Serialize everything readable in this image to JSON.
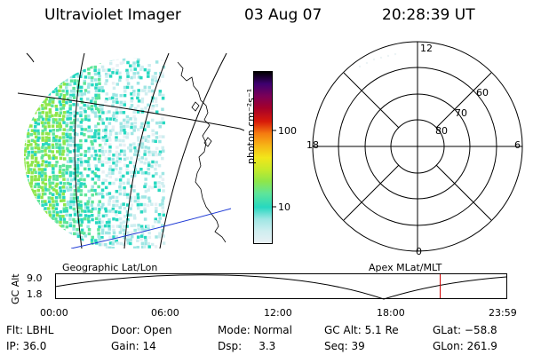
{
  "header": {
    "instrument": "Ultraviolet Imager",
    "date": "03 Aug 07",
    "time": "20:28:39 UT"
  },
  "colors": {
    "colorbar": [
      "#e8f0f4",
      "#cfeef0",
      "#9fe6e4",
      "#27d8c0",
      "#5ee59a",
      "#8ee64a",
      "#c6ea2a",
      "#f2e61a",
      "#f6b516",
      "#f57b10",
      "#d81a0a",
      "#a4002a",
      "#7a0058",
      "#3e0070",
      "#000000"
    ],
    "coast": "#000000",
    "terminator": "#1f3bd6",
    "marker": "#d10000"
  },
  "geo_panel": {
    "label": "Geographic Lat/Lon"
  },
  "colorbar": {
    "unit_label": "photon cm⁻²s⁻¹",
    "ticks": [
      "100",
      "10"
    ]
  },
  "polar_panel": {
    "label": "Apex  MLat/MLT",
    "mlt_labels": {
      "top": "12",
      "left": "18",
      "right": "6",
      "bottom": "0"
    },
    "lat_labels": [
      "60",
      "70",
      "80"
    ]
  },
  "orbit": {
    "ylabel": "GC Alt",
    "yticks": [
      "9.0",
      "1.8"
    ],
    "xticks": [
      "00:00",
      "06:00",
      "12:00",
      "18:00",
      "23:59"
    ],
    "current_hour": 20.48
  },
  "info_rows": [
    [
      "Flt: LBHL",
      "Door: Open",
      "Mode: Normal",
      "GC Alt: 5.1 Re",
      "GLat: −58.8"
    ],
    [
      "IP: 36.0",
      "Gain: 14",
      "Dsp:     3.3",
      "Seq: 39",
      "GLon: 261.9"
    ]
  ]
}
